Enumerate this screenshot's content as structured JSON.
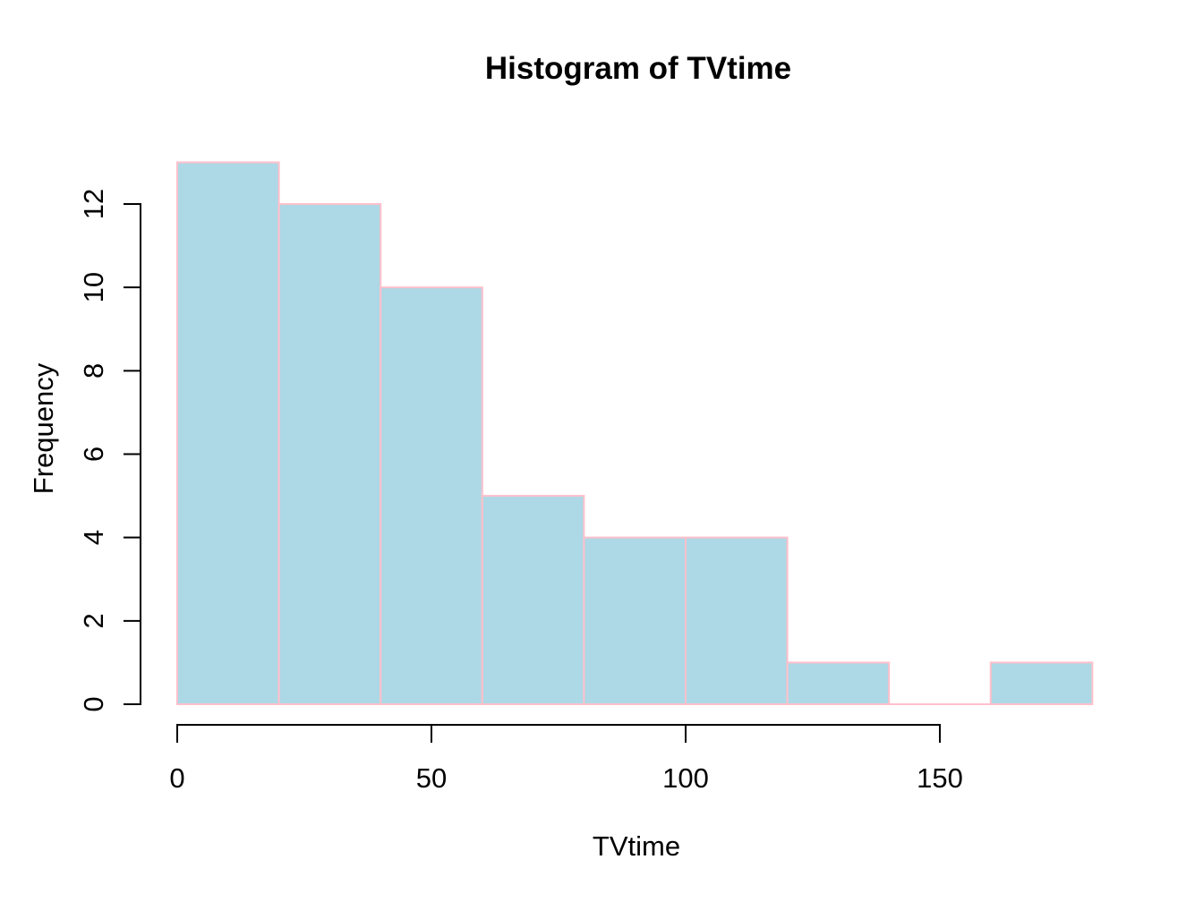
{
  "chart_data": {
    "type": "bar",
    "subtype": "histogram",
    "title": "Histogram of TVtime",
    "xlabel": "TVtime",
    "ylabel": "Frequency",
    "bin_edges": [
      0,
      20,
      40,
      60,
      80,
      100,
      120,
      140,
      160,
      180
    ],
    "counts": [
      13,
      12,
      10,
      5,
      4,
      4,
      1,
      0,
      1
    ],
    "x_ticks": [
      0,
      50,
      100,
      150
    ],
    "y_ticks": [
      0,
      2,
      4,
      6,
      8,
      10,
      12
    ],
    "xlim": [
      0,
      180
    ],
    "ylim": [
      0,
      13
    ],
    "grid": false,
    "legend": false,
    "colors": {
      "bar_fill": "#ADD8E6",
      "bar_border": "#FFC0CB",
      "axis": "#000000",
      "text": "#000000",
      "background": "#FFFFFF"
    }
  }
}
